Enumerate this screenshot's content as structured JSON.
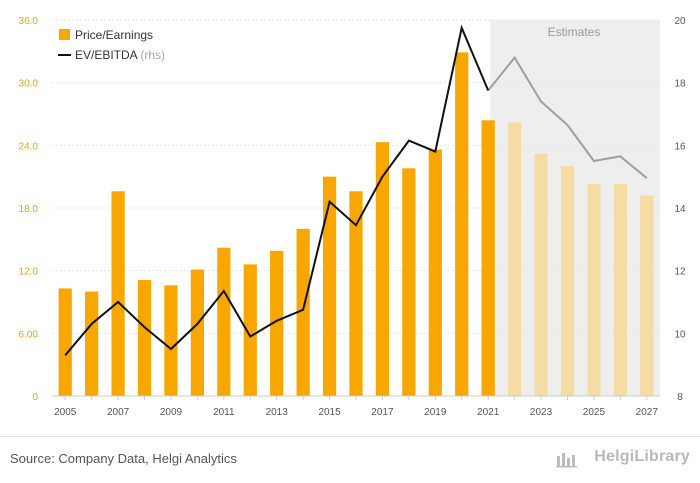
{
  "chart_data": {
    "type": "bar",
    "x": [
      2005,
      2006,
      2007,
      2008,
      2009,
      2010,
      2011,
      2012,
      2013,
      2014,
      2015,
      2016,
      2017,
      2018,
      2019,
      2020,
      2021,
      2022,
      2023,
      2024,
      2025,
      2026,
      2027
    ],
    "x_tick_labels": [
      "2005",
      "2007",
      "2009",
      "2011",
      "2013",
      "2015",
      "2017",
      "2019",
      "2021",
      "2023",
      "2025",
      "2027"
    ],
    "series": [
      {
        "name": "Price/Earnings",
        "kind": "bar",
        "axis": "left",
        "values": [
          10.3,
          10.0,
          19.6,
          11.1,
          10.6,
          12.1,
          14.2,
          12.6,
          13.9,
          16.0,
          21.0,
          19.6,
          24.3,
          21.8,
          23.6,
          32.9,
          26.4,
          26.2,
          23.2,
          22.0,
          20.3,
          20.3,
          19.2
        ]
      },
      {
        "name": "EV/EBITDA",
        "kind": "line",
        "axis": "right",
        "values": [
          9.3,
          10.3,
          11.0,
          10.2,
          9.5,
          10.3,
          11.35,
          9.9,
          10.4,
          10.75,
          14.2,
          13.45,
          15.0,
          16.15,
          15.8,
          19.75,
          17.75,
          18.8,
          17.4,
          16.65,
          15.5,
          15.65,
          14.95
        ]
      }
    ],
    "estimates_from": 2022,
    "y_left": {
      "ticks": [
        "0",
        "6.00",
        "12.0",
        "18.0",
        "24.0",
        "30.0",
        "36.0"
      ],
      "ylim": [
        0,
        36
      ]
    },
    "y_right": {
      "ticks": [
        "8",
        "10",
        "12",
        "14",
        "16",
        "18",
        "20"
      ],
      "ylim": [
        8,
        20
      ]
    },
    "legend": {
      "placement": "top-left",
      "pe_label": "Price/Earnings",
      "ev_label": "EV/EBITDA",
      "ev_suffix": "(rhs)"
    },
    "estimates_label": "Estimates",
    "colors": {
      "bar": "#f7a700",
      "bar_estimate": "#f5dca3",
      "line": "#111111",
      "line_estimate": "#9e9e9e",
      "estimate_shade": "#eeeeee",
      "left_axis_text": "#e3a31c"
    }
  },
  "footer": {
    "source": "Source: Company Data, Helgi Analytics",
    "brand": "HelgiLibrary"
  }
}
